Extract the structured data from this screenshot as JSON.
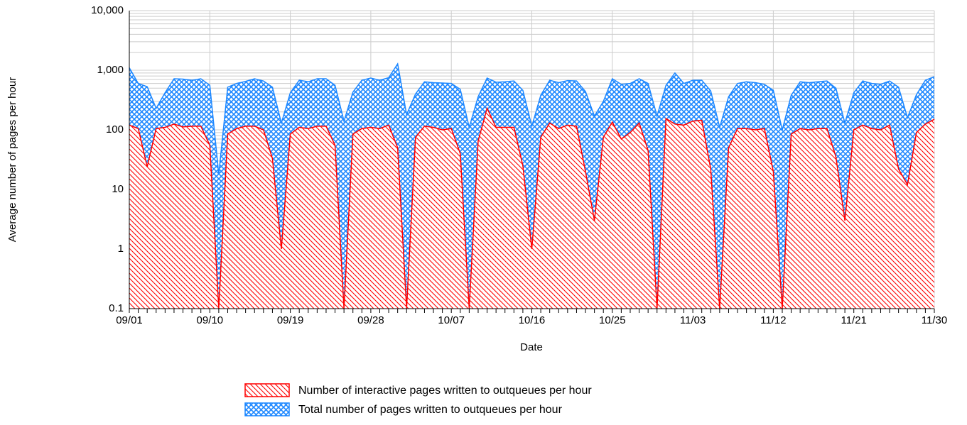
{
  "chart_data": {
    "type": "area",
    "yscale": "log",
    "grid": true,
    "legend": "bottom",
    "ylabel": "Average number of pages per hour",
    "xlabel": "Date",
    "categories": [
      "09/01",
      null,
      null,
      null,
      null,
      null,
      null,
      null,
      null,
      "09/10",
      null,
      null,
      null,
      null,
      null,
      null,
      null,
      null,
      "09/19",
      null,
      null,
      null,
      null,
      null,
      null,
      null,
      null,
      "09/28",
      null,
      null,
      null,
      null,
      null,
      null,
      null,
      null,
      "10/07",
      null,
      null,
      null,
      null,
      null,
      null,
      null,
      null,
      "10/16",
      null,
      null,
      null,
      null,
      null,
      null,
      null,
      null,
      "10/25",
      null,
      null,
      null,
      null,
      null,
      null,
      null,
      null,
      "11/03",
      null,
      null,
      null,
      null,
      null,
      null,
      null,
      null,
      "11/12",
      null,
      null,
      null,
      null,
      null,
      null,
      null,
      null,
      "11/21",
      null,
      null,
      null,
      null,
      null,
      null,
      null,
      null,
      "11/30"
    ],
    "ylim": [
      0.1,
      10000
    ],
    "yticks": [
      0.1,
      1,
      10,
      100,
      {
        "value": 1000,
        "label": "1,000"
      },
      {
        "value": 10000,
        "label": "10,000"
      }
    ],
    "series": [
      {
        "name": "Total number of pages written to outqueues per hour",
        "color": "#1e88ff",
        "pattern": "crosshatch",
        "values": [
          1100,
          600,
          530,
          230,
          420,
          720,
          710,
          680,
          720,
          560,
          18,
          520,
          600,
          650,
          720,
          660,
          520,
          130,
          420,
          680,
          640,
          720,
          720,
          560,
          140,
          430,
          680,
          740,
          680,
          750,
          1280,
          180,
          400,
          640,
          620,
          610,
          600,
          480,
          110,
          360,
          740,
          630,
          640,
          660,
          460,
          115,
          380,
          680,
          620,
          670,
          660,
          440,
          170,
          300,
          720,
          580,
          600,
          720,
          600,
          170,
          560,
          900,
          600,
          680,
          680,
          450,
          110,
          360,
          600,
          640,
          620,
          580,
          460,
          100,
          380,
          640,
          620,
          640,
          660,
          500,
          130,
          420,
          660,
          600,
          580,
          660,
          520,
          160,
          390,
          680,
          780
        ]
      },
      {
        "name": "Number of interactive pages written to outqueues per hour",
        "color": "#ff0000",
        "pattern": "diagonal",
        "values": [
          120,
          105,
          24,
          105,
          110,
          125,
          112,
          115,
          115,
          55,
          0.1,
          85,
          105,
          115,
          115,
          100,
          33,
          1,
          85,
          110,
          105,
          115,
          115,
          55,
          0.1,
          85,
          105,
          110,
          105,
          120,
          50,
          0.1,
          75,
          115,
          110,
          100,
          105,
          40,
          0.1,
          65,
          230,
          110,
          110,
          110,
          25,
          1,
          75,
          130,
          105,
          120,
          115,
          20,
          3,
          75,
          135,
          70,
          90,
          130,
          45,
          0.1,
          155,
          125,
          120,
          140,
          145,
          22,
          0.1,
          50,
          105,
          105,
          100,
          105,
          20,
          0.1,
          85,
          105,
          100,
          105,
          105,
          35,
          3,
          100,
          120,
          105,
          100,
          120,
          22,
          12,
          90,
          125,
          150
        ]
      }
    ]
  }
}
